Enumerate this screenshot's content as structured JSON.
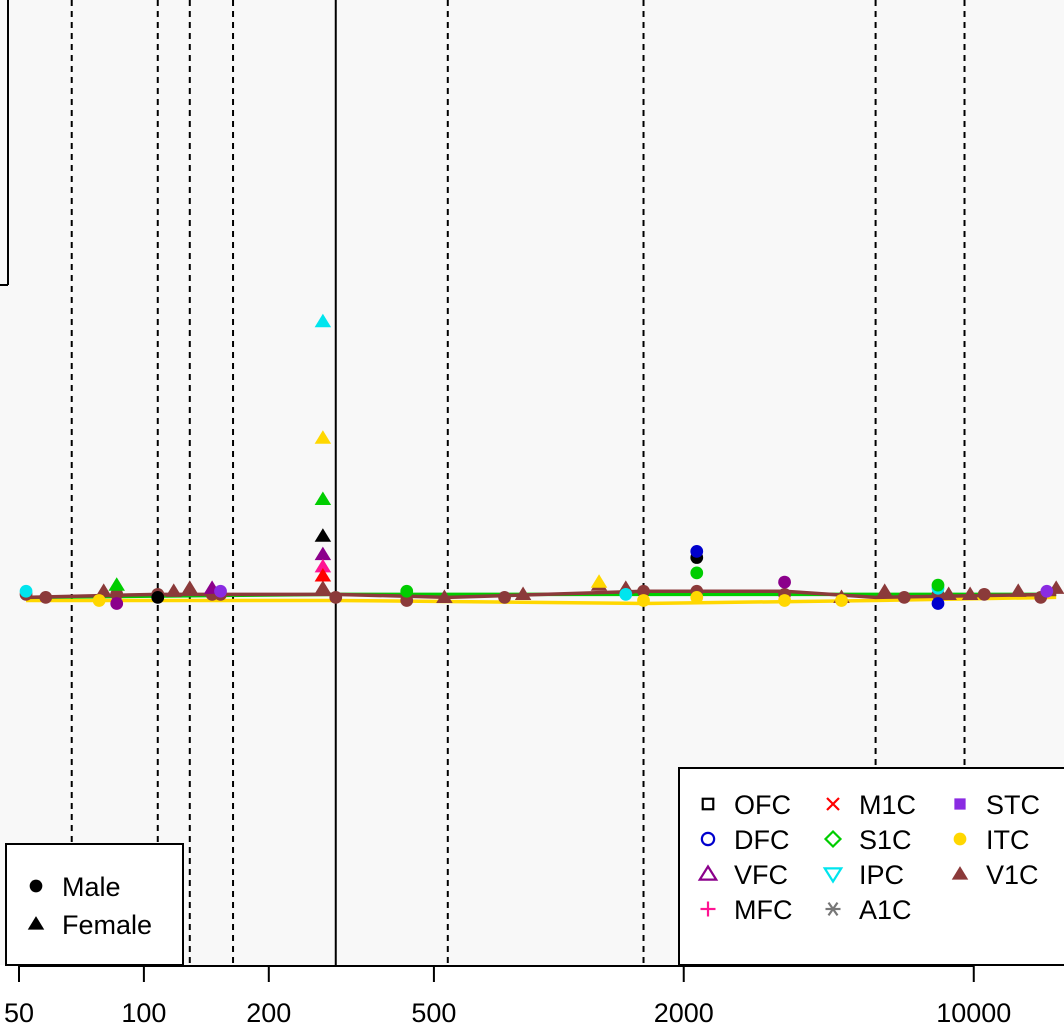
{
  "chart_data": {
    "type": "scatter",
    "x_scale": "log",
    "x_ticks": [
      {
        "value": 50,
        "label": "50"
      },
      {
        "value": 100,
        "label": "100"
      },
      {
        "value": 200,
        "label": "200"
      },
      {
        "value": 500,
        "label": "500"
      },
      {
        "value": 2000,
        "label": "2000"
      },
      {
        "value": 10000,
        "label": "10000"
      }
    ],
    "xlim": [
      45,
      16500
    ],
    "ylim": [
      -1.2,
      1.95
    ],
    "background_color": "#f8f8f8",
    "vertical_lines": [
      {
        "x": 67,
        "style": "dashed"
      },
      {
        "x": 108,
        "style": "dashed"
      },
      {
        "x": 129,
        "style": "dashed"
      },
      {
        "x": 164,
        "style": "dashed"
      },
      {
        "x": 290,
        "style": "solid"
      },
      {
        "x": 540,
        "style": "dashed"
      },
      {
        "x": 1600,
        "style": "dashed"
      },
      {
        "x": 5800,
        "style": "dashed"
      },
      {
        "x": 9500,
        "style": "dashed"
      }
    ],
    "region_legend": {
      "placement": "top-right",
      "entries": [
        {
          "label": "OFC",
          "color": "#000000",
          "symbol": "open-square"
        },
        {
          "label": "DFC",
          "color": "#0000cd",
          "symbol": "open-circle"
        },
        {
          "label": "VFC",
          "color": "#8b008b",
          "symbol": "open-triangle"
        },
        {
          "label": "MFC",
          "color": "#ff1493",
          "symbol": "plus"
        },
        {
          "label": "M1C",
          "color": "#ff0000",
          "symbol": "cross"
        },
        {
          "label": "S1C",
          "color": "#00cd00",
          "symbol": "open-diamond"
        },
        {
          "label": "IPC",
          "color": "#00e5ee",
          "symbol": "open-triangle-down"
        },
        {
          "label": "A1C",
          "color": "#777777",
          "symbol": "asterisk"
        },
        {
          "label": "STC",
          "color": "#8a2be2",
          "symbol": "filled-square"
        },
        {
          "label": "ITC",
          "color": "#ffd700",
          "symbol": "filled-circle"
        },
        {
          "label": "V1C",
          "color": "#8b3a3a",
          "symbol": "filled-triangle"
        }
      ]
    },
    "sex_legend": {
      "placement": "bottom-left",
      "entries": [
        {
          "label": "Male",
          "symbol": "filled-circle"
        },
        {
          "label": "Female",
          "symbol": "filled-triangle"
        }
      ]
    },
    "series": [
      {
        "region": "V1C",
        "color": "#8b3a3a",
        "points": [
          {
            "x": 52,
            "y": 0.01,
            "sex": "Male"
          },
          {
            "x": 58,
            "y": 0.0,
            "sex": "Male"
          },
          {
            "x": 80,
            "y": 0.02,
            "sex": "Female"
          },
          {
            "x": 86,
            "y": 0.01,
            "sex": "Male"
          },
          {
            "x": 108,
            "y": 0.01,
            "sex": "Male"
          },
          {
            "x": 118,
            "y": 0.02,
            "sex": "Female"
          },
          {
            "x": 129,
            "y": 0.03,
            "sex": "Female"
          },
          {
            "x": 146,
            "y": 0.01,
            "sex": "Male"
          },
          {
            "x": 153,
            "y": 0.01,
            "sex": "Male"
          },
          {
            "x": 270,
            "y": 0.03,
            "sex": "Female"
          },
          {
            "x": 290,
            "y": 0.0,
            "sex": "Male"
          },
          {
            "x": 430,
            "y": -0.01,
            "sex": "Male"
          },
          {
            "x": 530,
            "y": 0.0,
            "sex": "Female"
          },
          {
            "x": 740,
            "y": 0.0,
            "sex": "Male"
          },
          {
            "x": 820,
            "y": 0.01,
            "sex": "Female"
          },
          {
            "x": 1250,
            "y": 0.04,
            "sex": "Female"
          },
          {
            "x": 1450,
            "y": 0.03,
            "sex": "Female"
          },
          {
            "x": 1600,
            "y": 0.02,
            "sex": "Male"
          },
          {
            "x": 2150,
            "y": 0.02,
            "sex": "Male"
          },
          {
            "x": 3500,
            "y": 0.01,
            "sex": "Male"
          },
          {
            "x": 4800,
            "y": 0.0,
            "sex": "Female"
          },
          {
            "x": 6100,
            "y": 0.02,
            "sex": "Female"
          },
          {
            "x": 6800,
            "y": 0.0,
            "sex": "Male"
          },
          {
            "x": 8200,
            "y": 0.01,
            "sex": "Male"
          },
          {
            "x": 8700,
            "y": 0.01,
            "sex": "Female"
          },
          {
            "x": 9800,
            "y": 0.01,
            "sex": "Female"
          },
          {
            "x": 10600,
            "y": 0.01,
            "sex": "Male"
          },
          {
            "x": 12800,
            "y": 0.02,
            "sex": "Female"
          },
          {
            "x": 14500,
            "y": 0.0,
            "sex": "Male"
          },
          {
            "x": 15800,
            "y": 0.03,
            "sex": "Female"
          }
        ]
      },
      {
        "region": "ITC",
        "color": "#ffd700",
        "points": [
          {
            "x": 78,
            "y": -0.01,
            "sex": "Male"
          },
          {
            "x": 270,
            "y": 0.52,
            "sex": "Female"
          },
          {
            "x": 1250,
            "y": 0.05,
            "sex": "Female"
          },
          {
            "x": 1600,
            "y": -0.01,
            "sex": "Male"
          },
          {
            "x": 2150,
            "y": 0.0,
            "sex": "Male"
          },
          {
            "x": 3500,
            "y": -0.01,
            "sex": "Male"
          },
          {
            "x": 4800,
            "y": -0.01,
            "sex": "Male"
          }
        ]
      },
      {
        "region": "IPC",
        "color": "#00e5ee",
        "points": [
          {
            "x": 52,
            "y": 0.02,
            "sex": "Male"
          },
          {
            "x": 270,
            "y": 0.9,
            "sex": "Female"
          },
          {
            "x": 1450,
            "y": 0.01,
            "sex": "Male"
          },
          {
            "x": 8200,
            "y": 0.03,
            "sex": "Male"
          }
        ]
      },
      {
        "region": "S1C",
        "color": "#00cd00",
        "points": [
          {
            "x": 86,
            "y": 0.04,
            "sex": "Female"
          },
          {
            "x": 270,
            "y": 0.32,
            "sex": "Female"
          },
          {
            "x": 430,
            "y": 0.02,
            "sex": "Male"
          },
          {
            "x": 2150,
            "y": 0.08,
            "sex": "Male"
          },
          {
            "x": 8200,
            "y": 0.04,
            "sex": "Male"
          }
        ]
      },
      {
        "region": "OFC",
        "color": "#000000",
        "points": [
          {
            "x": 108,
            "y": 0.0,
            "sex": "Male"
          },
          {
            "x": 270,
            "y": 0.2,
            "sex": "Female"
          },
          {
            "x": 2150,
            "y": 0.13,
            "sex": "Male"
          }
        ]
      },
      {
        "region": "DFC",
        "color": "#0000cd",
        "points": [
          {
            "x": 2150,
            "y": 0.15,
            "sex": "Male"
          },
          {
            "x": 8200,
            "y": -0.02,
            "sex": "Male"
          }
        ]
      },
      {
        "region": "VFC",
        "color": "#8b008b",
        "points": [
          {
            "x": 86,
            "y": -0.02,
            "sex": "Male"
          },
          {
            "x": 146,
            "y": 0.03,
            "sex": "Female"
          },
          {
            "x": 270,
            "y": 0.14,
            "sex": "Female"
          },
          {
            "x": 3500,
            "y": 0.05,
            "sex": "Male"
          }
        ]
      },
      {
        "region": "MFC",
        "color": "#ff1493",
        "points": [
          {
            "x": 270,
            "y": 0.1,
            "sex": "Female"
          }
        ]
      },
      {
        "region": "M1C",
        "color": "#ff0000",
        "points": [
          {
            "x": 270,
            "y": 0.07,
            "sex": "Female"
          }
        ]
      },
      {
        "region": "STC",
        "color": "#8a2be2",
        "points": [
          {
            "x": 153,
            "y": 0.02,
            "sex": "Male"
          },
          {
            "x": 15000,
            "y": 0.02,
            "sex": "Male"
          }
        ]
      }
    ],
    "trend_lines": [
      {
        "region": "ITC",
        "color": "#ffd700",
        "points": [
          [
            52,
            -0.01
          ],
          [
            290,
            -0.01
          ],
          [
            1600,
            -0.02
          ],
          [
            5800,
            -0.01
          ],
          [
            15800,
            0.0
          ]
        ]
      },
      {
        "region": "S1C",
        "color": "#00cd00",
        "points": [
          [
            52,
            0.0
          ],
          [
            290,
            0.01
          ],
          [
            1600,
            0.01
          ],
          [
            5800,
            0.01
          ],
          [
            15800,
            0.01
          ]
        ]
      },
      {
        "region": "V1C",
        "color": "#8b3a3a",
        "points": [
          [
            52,
            0.0
          ],
          [
            108,
            0.01
          ],
          [
            290,
            0.01
          ],
          [
            540,
            0.0
          ],
          [
            1600,
            0.02
          ],
          [
            3500,
            0.02
          ],
          [
            5800,
            0.0
          ],
          [
            15800,
            0.01
          ]
        ]
      }
    ]
  }
}
